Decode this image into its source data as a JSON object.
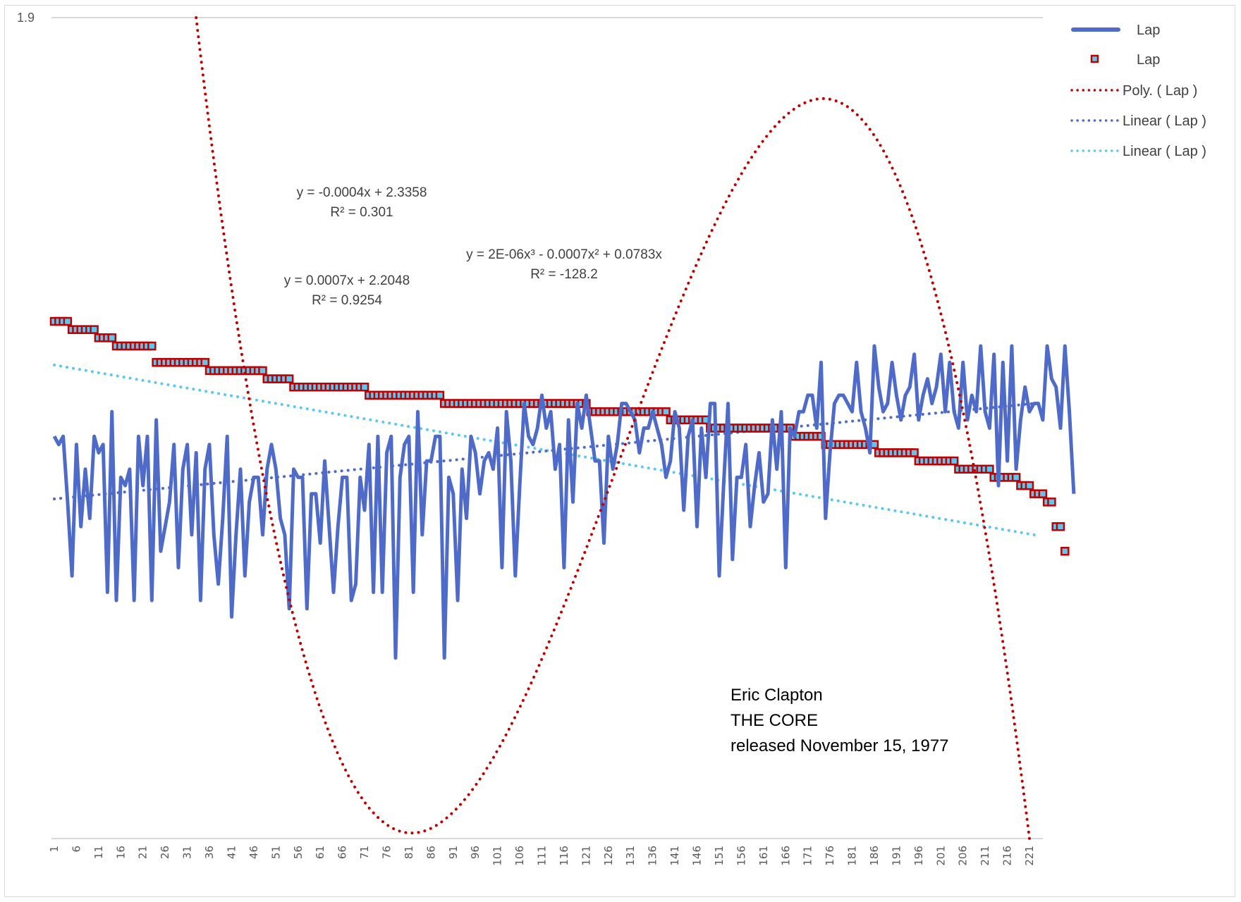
{
  "chart_data": {
    "type": "line",
    "title": "",
    "xlabel": "",
    "ylabel": "",
    "y_axis_reversed": true,
    "ylim": [
      1.9,
      2.9
    ],
    "y_tick_labels": [
      "1.9"
    ],
    "x_range": [
      1,
      223
    ],
    "x_tick_labels": [
      "1",
      "6",
      "11",
      "16",
      "21",
      "26",
      "31",
      "36",
      "41",
      "46",
      "51",
      "56",
      "61",
      "66",
      "71",
      "76",
      "81",
      "86",
      "91",
      "96",
      "101",
      "106",
      "111",
      "116",
      "121",
      "126",
      "131",
      "136",
      "141",
      "146",
      "151",
      "156",
      "161",
      "166",
      "171",
      "176",
      "181",
      "186",
      "191",
      "196",
      "201",
      "206",
      "211",
      "216",
      "221"
    ],
    "grid": {
      "major_horizontal": "top-only"
    },
    "legend_position": "right",
    "series": [
      {
        "name": "Lap",
        "kind": "line",
        "color": "#4f6bc9",
        "values": [
          2.41,
          2.42,
          2.41,
          2.49,
          2.58,
          2.42,
          2.52,
          2.45,
          2.51,
          2.41,
          2.43,
          2.42,
          2.6,
          2.38,
          2.61,
          2.46,
          2.47,
          2.45,
          2.61,
          2.41,
          2.47,
          2.41,
          2.61,
          2.39,
          2.55,
          2.52,
          2.49,
          2.42,
          2.57,
          2.45,
          2.42,
          2.53,
          2.43,
          2.61,
          2.45,
          2.42,
          2.53,
          2.59,
          2.51,
          2.41,
          2.63,
          2.53,
          2.45,
          2.58,
          2.49,
          2.46,
          2.46,
          2.53,
          2.45,
          2.42,
          2.45,
          2.51,
          2.53,
          2.62,
          2.45,
          2.46,
          2.46,
          2.62,
          2.48,
          2.48,
          2.54,
          2.44,
          2.52,
          2.6,
          2.52,
          2.46,
          2.46,
          2.61,
          2.59,
          2.46,
          2.5,
          2.42,
          2.6,
          2.41,
          2.6,
          2.43,
          2.41,
          2.68,
          2.46,
          2.42,
          2.41,
          2.6,
          2.38,
          2.53,
          2.44,
          2.44,
          2.41,
          2.41,
          2.68,
          2.46,
          2.48,
          2.61,
          2.45,
          2.51,
          2.41,
          2.43,
          2.48,
          2.44,
          2.43,
          2.45,
          2.4,
          2.57,
          2.38,
          2.44,
          2.58,
          2.47,
          2.37,
          2.41,
          2.42,
          2.4,
          2.36,
          2.4,
          2.38,
          2.45,
          2.42,
          2.57,
          2.39,
          2.49,
          2.37,
          2.4,
          2.36,
          2.4,
          2.44,
          2.44,
          2.54,
          2.41,
          2.45,
          2.42,
          2.37,
          2.37,
          2.38,
          2.39,
          2.43,
          2.4,
          2.4,
          2.38,
          2.4,
          2.42,
          2.46,
          2.44,
          2.38,
          2.4,
          2.5,
          2.41,
          2.39,
          2.52,
          2.4,
          2.46,
          2.37,
          2.37,
          2.58,
          2.47,
          2.37,
          2.56,
          2.46,
          2.46,
          2.42,
          2.52,
          2.47,
          2.43,
          2.49,
          2.48,
          2.39,
          2.45,
          2.38,
          2.57,
          2.4,
          2.41,
          2.38,
          2.38,
          2.36,
          2.36,
          2.4,
          2.32,
          2.51,
          2.43,
          2.37,
          2.36,
          2.36,
          2.37,
          2.38,
          2.32,
          2.38,
          2.4,
          2.43,
          2.3,
          2.35,
          2.38,
          2.37,
          2.32,
          2.36,
          2.39,
          2.36,
          2.35,
          2.31,
          2.39,
          2.36,
          2.34,
          2.37,
          2.35,
          2.31,
          2.38,
          2.32,
          2.38,
          2.4,
          2.32,
          2.39,
          2.36,
          2.38,
          2.3,
          2.38,
          2.4,
          2.31,
          2.47,
          2.32,
          2.44,
          2.3,
          2.45,
          2.39,
          2.35,
          2.38,
          2.37,
          2.37,
          2.39,
          2.3,
          2.34,
          2.35,
          2.4,
          2.3,
          2.38,
          2.48
        ]
      },
      {
        "name": "Lap",
        "kind": "markers",
        "marker_fill": "#5bc8f0",
        "marker_edge": "#c00000",
        "values": [
          2.27,
          2.27,
          2.27,
          2.27,
          2.28,
          2.28,
          2.28,
          2.28,
          2.28,
          2.28,
          2.29,
          2.29,
          2.29,
          2.29,
          2.3,
          2.3,
          2.3,
          2.3,
          2.3,
          2.3,
          2.3,
          2.3,
          2.3,
          2.32,
          2.32,
          2.32,
          2.32,
          2.32,
          2.32,
          2.32,
          2.32,
          2.32,
          2.32,
          2.32,
          2.32,
          2.33,
          2.33,
          2.33,
          2.33,
          2.33,
          2.33,
          2.33,
          2.33,
          2.33,
          2.33,
          2.33,
          2.33,
          2.33,
          2.34,
          2.34,
          2.34,
          2.34,
          2.34,
          2.34,
          2.35,
          2.35,
          2.35,
          2.35,
          2.35,
          2.35,
          2.35,
          2.35,
          2.35,
          2.35,
          2.35,
          2.35,
          2.35,
          2.35,
          2.35,
          2.35,
          2.35,
          2.36,
          2.36,
          2.36,
          2.36,
          2.36,
          2.36,
          2.36,
          2.36,
          2.36,
          2.36,
          2.36,
          2.36,
          2.36,
          2.36,
          2.36,
          2.36,
          2.36,
          2.37,
          2.37,
          2.37,
          2.37,
          2.37,
          2.37,
          2.37,
          2.37,
          2.37,
          2.37,
          2.37,
          2.37,
          2.37,
          2.37,
          2.37,
          2.37,
          2.37,
          2.37,
          2.37,
          2.37,
          2.37,
          2.37,
          2.37,
          2.37,
          2.37,
          2.37,
          2.37,
          2.37,
          2.37,
          2.37,
          2.37,
          2.37,
          2.37,
          2.38,
          2.38,
          2.38,
          2.38,
          2.38,
          2.38,
          2.38,
          2.38,
          2.38,
          2.38,
          2.38,
          2.38,
          2.38,
          2.38,
          2.38,
          2.38,
          2.38,
          2.38,
          2.39,
          2.39,
          2.39,
          2.39,
          2.39,
          2.39,
          2.39,
          2.39,
          2.39,
          2.4,
          2.4,
          2.4,
          2.4,
          2.4,
          2.4,
          2.4,
          2.4,
          2.4,
          2.4,
          2.4,
          2.4,
          2.4,
          2.4,
          2.4,
          2.4,
          2.4,
          2.4,
          2.4,
          2.41,
          2.41,
          2.41,
          2.41,
          2.41,
          2.41,
          2.41,
          2.42,
          2.42,
          2.42,
          2.42,
          2.42,
          2.42,
          2.42,
          2.42,
          2.42,
          2.42,
          2.42,
          2.42,
          2.43,
          2.43,
          2.43,
          2.43,
          2.43,
          2.43,
          2.43,
          2.43,
          2.43,
          2.44,
          2.44,
          2.44,
          2.44,
          2.44,
          2.44,
          2.44,
          2.44,
          2.44,
          2.45,
          2.45,
          2.45,
          2.45,
          2.45,
          2.45,
          2.45,
          2.45,
          2.46,
          2.46,
          2.46,
          2.46,
          2.46,
          2.46,
          2.47,
          2.47,
          2.47,
          2.48,
          2.48,
          2.48,
          2.49,
          2.49,
          2.52,
          2.52,
          2.55
        ]
      }
    ],
    "trendlines": [
      {
        "name": "Poly. (    Lap )",
        "type": "polynomial",
        "order": 3,
        "color": "#c00000",
        "equation": "y = 2E-06x³ - 0.0007x² + 0.0783x",
        "r2": "R² = -128.2"
      },
      {
        "name": "Linear (    Lap )",
        "type": "linear",
        "color": "#4f6bc9",
        "equation": "y = 0.0007x + 2.2048",
        "r2": "R² = 0.9254"
      },
      {
        "name": "Linear (    Lap )",
        "type": "linear",
        "color": "#5bc8f0",
        "equation": "y = -0.0004x + 2.3358",
        "r2": "R² = 0.301"
      }
    ],
    "annotation": {
      "lines": [
        "Eric Clapton",
        "THE CORE",
        "released November 15, 1977"
      ]
    },
    "legend": [
      {
        "label": "Lap",
        "style": "solid-line",
        "color": "#4f6bc9"
      },
      {
        "label": "Lap",
        "style": "square-marker",
        "color": "#5bc8f0"
      },
      {
        "label": "Poly. (    Lap )",
        "style": "dotted",
        "color": "#c00000"
      },
      {
        "label": "Linear (    Lap )",
        "style": "dotted",
        "color": "#4f6bc9"
      },
      {
        "label": "Linear (    Lap )",
        "style": "dotted",
        "color": "#5bc8f0"
      }
    ]
  }
}
